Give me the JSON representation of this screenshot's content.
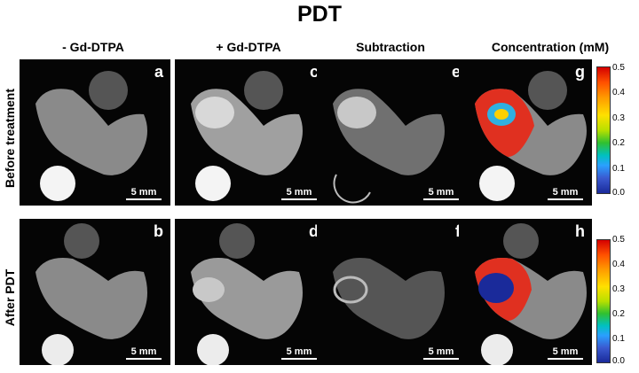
{
  "title": "PDT",
  "columns": [
    "- Gd-DTPA",
    "+ Gd-DTPA",
    "Subtraction",
    "Concentration (mM)"
  ],
  "rows": [
    "Before treatment",
    "After PDT"
  ],
  "panels": {
    "top": [
      "a",
      "c",
      "e",
      "g"
    ],
    "bottom": [
      "b",
      "d",
      "f",
      "h"
    ]
  },
  "scale_label": "5 mm",
  "colorbar": {
    "ticks": [
      "0.5",
      "0.4",
      "0.3",
      "0.2",
      "0.1",
      "0.0"
    ],
    "min": 0.0,
    "max": 0.5
  }
}
